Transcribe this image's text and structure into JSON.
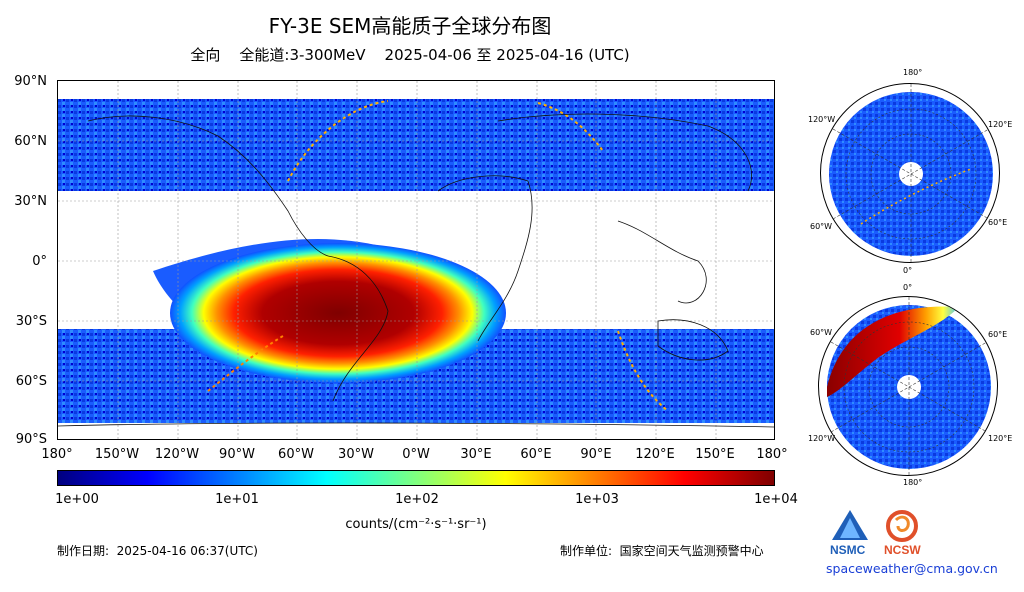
{
  "header": {
    "title": "FY-3E SEM高能质子全球分布图",
    "subtitle": "全向    全能道:3-300MeV    2025-04-06 至 2025-04-16 (UTC)"
  },
  "map": {
    "lat_labels": [
      "90°N",
      "60°N",
      "30°N",
      "0°",
      "30°S",
      "60°S",
      "90°S"
    ],
    "lon_labels": [
      "180°",
      "150°W",
      "120°W",
      "90°W",
      "60°W",
      "30°W",
      "0°W",
      "30°E",
      "60°E",
      "90°E",
      "120°E",
      "150°E",
      "180°"
    ]
  },
  "colorbar": {
    "ticks": [
      "1e+00",
      "1e+01",
      "1e+02",
      "1e+03",
      "1e+04"
    ],
    "unit": "counts/(cm⁻²·s⁻¹·sr⁻¹)",
    "colors": [
      "#00007f",
      "#0000ff",
      "#007fff",
      "#00ffff",
      "#7fff7f",
      "#ffff00",
      "#ff7f00",
      "#ff0000",
      "#7f0000"
    ]
  },
  "polar_north": {
    "labels": [
      "180°",
      "120°W",
      "120°E",
      "60°W",
      "60°E",
      "0°"
    ]
  },
  "polar_south": {
    "labels": [
      "0°",
      "60°W",
      "60°E",
      "120°W",
      "120°E",
      "180°"
    ]
  },
  "footer": {
    "date_label": "制作日期:  2025-04-16 06:37(UTC)",
    "unit_label": "制作单位:  国家空间天气监测预警中心",
    "logo_left": "NSMC",
    "logo_right": "NCSW",
    "email": "spaceweather@cma.gov.cn"
  }
}
